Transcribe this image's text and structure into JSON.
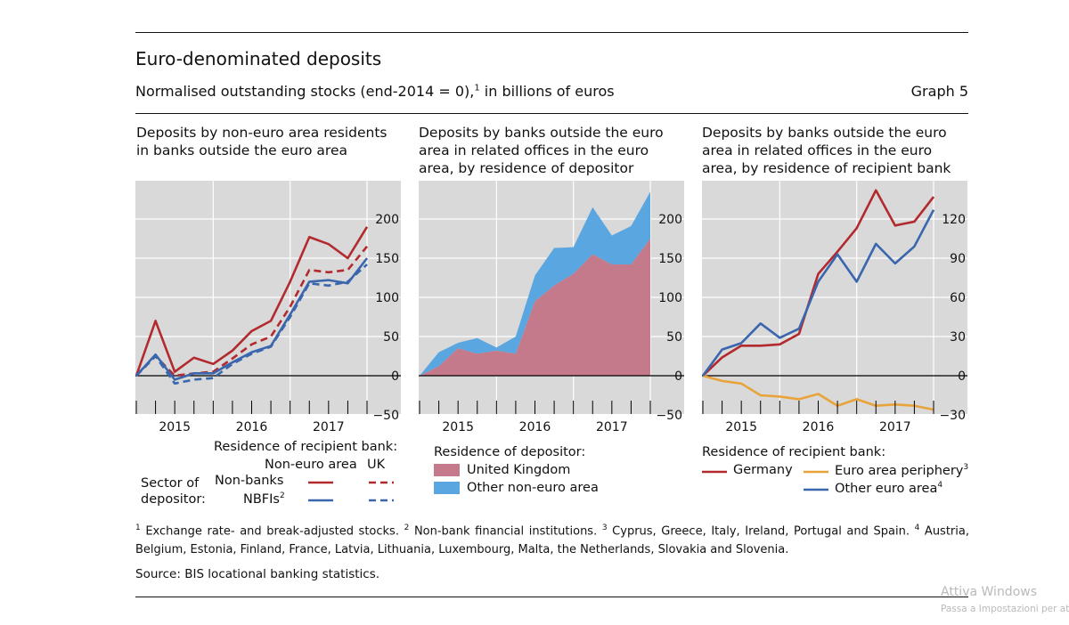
{
  "header": {
    "title": "Euro-denominated deposits",
    "subtitle_pre": "Normalised outstanding stocks (end-2014 = 0),",
    "subtitle_sup": "1",
    "subtitle_post": " in billions of euros",
    "graph_label": "Graph 5"
  },
  "chart_data": [
    {
      "type": "line",
      "title": "Deposits by non-euro area residents in banks outside the euro area",
      "x_ticks": [
        "2015",
        "2016",
        "2017"
      ],
      "x_quarters": [
        "Q4 2014",
        "Q1 2015",
        "Q2 2015",
        "Q3 2015",
        "Q4 2015",
        "Q1 2016",
        "Q2 2016",
        "Q3 2016",
        "Q4 2016",
        "Q1 2017",
        "Q2 2017",
        "Q3 2017",
        "Q4 2017"
      ],
      "y_ticks": [
        -50,
        0,
        50,
        100,
        150,
        200
      ],
      "y_tick_labels": [
        "−50",
        "0",
        "50",
        "100",
        "150",
        "200"
      ],
      "ylim": [
        -60,
        250
      ],
      "series": [
        {
          "name": "Non-banks, Non-euro area",
          "color": "#b22a2e",
          "dash": false,
          "values": [
            0,
            70,
            5,
            23,
            15,
            32,
            57,
            70,
            120,
            177,
            168,
            150,
            190
          ]
        },
        {
          "name": "Non-banks, UK",
          "color": "#b22a2e",
          "dash": true,
          "values": [
            0,
            25,
            0,
            3,
            5,
            22,
            40,
            50,
            88,
            135,
            132,
            135,
            165
          ]
        },
        {
          "name": "NBFIs, Non-euro area",
          "color": "#3a66ad",
          "dash": false,
          "values": [
            0,
            27,
            -5,
            3,
            3,
            17,
            30,
            38,
            78,
            120,
            122,
            118,
            150
          ]
        },
        {
          "name": "NBFIs, UK",
          "color": "#3a66ad",
          "dash": true,
          "values": [
            0,
            25,
            -10,
            -5,
            -3,
            15,
            28,
            37,
            75,
            118,
            115,
            120,
            142
          ]
        }
      ]
    },
    {
      "type": "area",
      "title": "Deposits by banks outside the euro area in related offices in the euro area, by residence of depositor",
      "x_ticks": [
        "2015",
        "2016",
        "2017"
      ],
      "y_ticks": [
        -50,
        0,
        50,
        100,
        150,
        200
      ],
      "y_tick_labels": [
        "−50",
        "0",
        "50",
        "100",
        "150",
        "200"
      ],
      "ylim": [
        -60,
        250
      ],
      "series": [
        {
          "name": "United Kingdom",
          "color": "#c47a8a",
          "values": [
            0,
            12,
            35,
            28,
            32,
            28,
            95,
            115,
            130,
            155,
            142,
            142,
            175
          ]
        },
        {
          "name": "Other non-euro area",
          "color": "#5aa6e0",
          "values": [
            0,
            18,
            7,
            20,
            4,
            22,
            33,
            48,
            34,
            60,
            37,
            49,
            60
          ]
        }
      ],
      "stacked_total": [
        0,
        30,
        42,
        48,
        36,
        50,
        128,
        163,
        164,
        215,
        179,
        191,
        235
      ]
    },
    {
      "type": "line",
      "title": "Deposits by banks outside the euro area in related offices in the euro area, by residence of recipient bank",
      "x_ticks": [
        "2015",
        "2016",
        "2017"
      ],
      "y_ticks": [
        -30,
        0,
        30,
        60,
        90,
        120
      ],
      "y_tick_labels": [
        "−30",
        "0",
        "30",
        "60",
        "90",
        "120"
      ],
      "ylim": [
        -36,
        150
      ],
      "series": [
        {
          "name": "Germany",
          "color": "#b22a2e",
          "values": [
            0,
            14,
            23,
            23,
            24,
            32,
            78,
            95,
            113,
            142,
            115,
            118,
            137
          ]
        },
        {
          "name": "Euro area periphery",
          "color": "#e8a33a",
          "values": [
            0,
            -4,
            -6,
            -15,
            -16,
            -18,
            -14,
            -23,
            -18,
            -23,
            -22,
            -23,
            -26
          ]
        },
        {
          "name": "Other euro area",
          "color": "#3a66ad",
          "values": [
            0,
            20,
            25,
            40,
            29,
            36,
            72,
            93,
            72,
            101,
            86,
            99,
            127
          ]
        }
      ]
    }
  ],
  "panel1_legend": {
    "heading": "Residence of recipient bank:",
    "col1": "Non-euro area",
    "col2": "UK",
    "sector_line1": "Sector of",
    "sector_line2": "depositor:",
    "row1": "Non-banks",
    "row2": "NBFIs",
    "row2_sup": "2"
  },
  "panel2_legend": {
    "heading": "Residence of depositor:",
    "item1": "United Kingdom",
    "item2": "Other non-euro area"
  },
  "panel3_legend": {
    "heading": "Residence of recipient bank:",
    "item1": "Germany",
    "item2": "Euro area periphery",
    "item2_sup": "3",
    "item3": "Other euro area",
    "item3_sup": "4"
  },
  "footnotes": {
    "f1_num": "1",
    "f1": " Exchange rate- and break-adjusted stocks. ",
    "f2_num": "2",
    "f2": " Non-bank financial institutions. ",
    "f3_num": "3",
    "f3": " Cyprus, Greece, Italy, Ireland, Portugal and Spain. ",
    "f4_num": "4",
    "f4": " Austria, Belgium, Estonia, Finland, France, Latvia, Lithuania, Luxembourg, Malta, the Netherlands, Slovakia and Slovenia."
  },
  "source": "Source: BIS locational banking statistics.",
  "watermark": {
    "line1": "Attiva Windows",
    "line2": "Passa a Impostazioni per atti"
  },
  "colors": {
    "plot_bg": "#d9d9d9",
    "red": "#b22a2e",
    "blue": "#3a66ad",
    "orange": "#e8a33a",
    "pink": "#c47a8a",
    "lightblue": "#5aa6e0"
  }
}
